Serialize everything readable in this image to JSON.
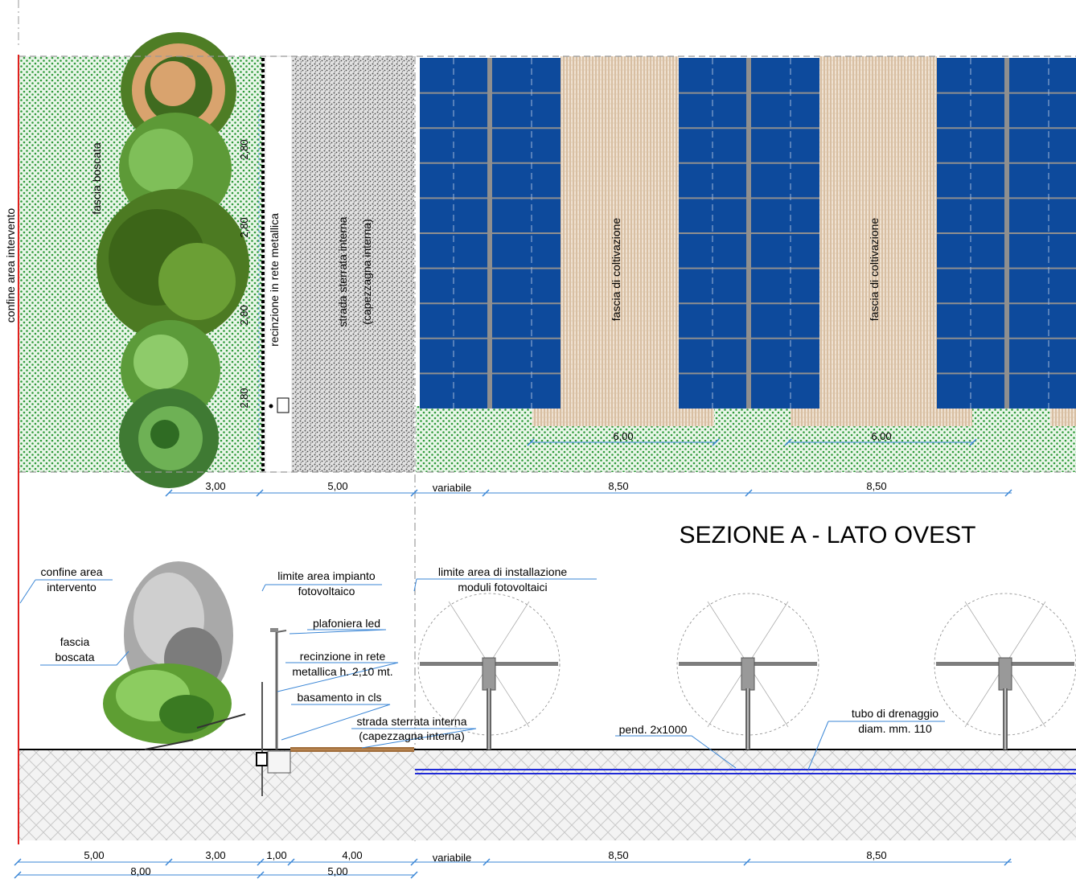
{
  "title": "SEZIONE  A - LATO OVEST",
  "plan": {
    "confine_label": "confine area intervento",
    "fascia_label": "fascia boscata",
    "recinzione_label": "recinzione in rete metallica",
    "strada_line1": "strada sterrata interna",
    "strada_line2": "(capezzagna interna)",
    "coltivazione_label_1": "fascia di coltivazione",
    "coltivazione_label_2": "fascia di coltivazione",
    "tree_spacing": [
      "2,80",
      "2,80",
      "2,80",
      "2,80"
    ],
    "coltivazione_width_1": "6,00",
    "coltivazione_width_2": "6,00",
    "dims": [
      "3,00",
      "5,00",
      "variabile",
      "8,50",
      "8,50"
    ]
  },
  "section": {
    "labels": {
      "confine_1": "confine area",
      "confine_2": "intervento",
      "fascia_1": "fascia",
      "fascia_2": "boscata",
      "limite_impianto_1": "limite area impianto",
      "limite_impianto_2": "fotovoltaico",
      "limite_install_1": "limite area di installazione",
      "limite_install_2": "moduli fotovoltaici",
      "plafoniera": "plafoniera led",
      "recinzione_1": "recinzione in rete",
      "recinzione_2": "metallica h. 2,10 mt.",
      "basamento": "basamento in cls",
      "strada_1": "strada sterrata interna",
      "strada_2": "(capezzagna interna)",
      "pendenza": "pend. 2x1000",
      "tubo_1": "tubo di drenaggio",
      "tubo_2": "diam. mm. 110"
    },
    "dims_top": [
      "5,00",
      "3,00",
      "1,00",
      "4,00",
      "variabile",
      "8,50",
      "8,50"
    ],
    "dims_bottom": [
      "8,00",
      "5,00"
    ]
  },
  "colors": {
    "panel": "#0d4a9c",
    "panel_frame": "#8f8f8f",
    "grass": "#2f9b3a",
    "soil": "#c9ae8c",
    "boundary": "#e0201e",
    "dimension": "#3a86d6",
    "drain": "#1f2ad6"
  }
}
